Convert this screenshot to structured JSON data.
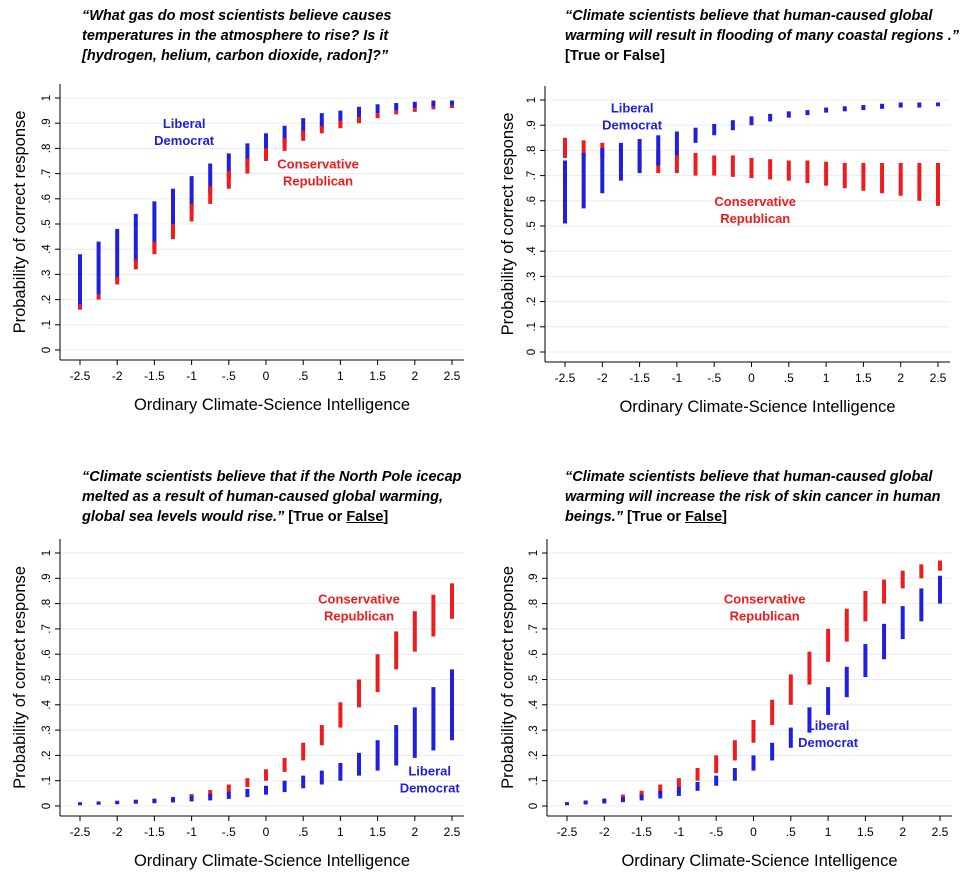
{
  "colors": {
    "liberal": "#1f1fe0",
    "conservative": "#ee1c1c",
    "grid": "#e8ecf0",
    "axis": "#000000"
  },
  "chart_data": [
    {
      "type": "range-bar",
      "question": "“What gas do most scientists believe causes temperatures in the atmosphere to rise? Is it [hydrogen, helium, carbon dioxide, radon]?”",
      "answer_hint": "",
      "answer_under": "",
      "answer_tail": "",
      "xlabel": "Ordinary Climate-Science Intelligence",
      "ylabel": "Probability of correct response",
      "ylim": [
        0,
        1
      ],
      "xlim": [
        -2.5,
        2.5
      ],
      "x_ticks": [
        "-2.5",
        "-2",
        "-1.5",
        "-1",
        "-.5",
        "0",
        ".5",
        "1",
        "1.5",
        "2",
        "2.5"
      ],
      "y_ticks": [
        "0",
        ".1",
        ".2",
        ".3",
        ".4",
        ".5",
        ".6",
        ".7",
        ".8",
        ".9",
        "1"
      ],
      "x": [
        -2.5,
        -2.25,
        -2.0,
        -1.75,
        -1.5,
        -1.25,
        -1.0,
        -0.75,
        -0.5,
        -0.25,
        0.0,
        0.25,
        0.5,
        0.75,
        1.0,
        1.25,
        1.5,
        1.75,
        2.0,
        2.25,
        2.5
      ],
      "series": [
        {
          "name": "Liberal Democrat",
          "color": "liberal",
          "low": [
            0.18,
            0.22,
            0.28,
            0.35,
            0.4,
            0.47,
            0.55,
            0.62,
            0.68,
            0.73,
            0.78,
            0.82,
            0.85,
            0.88,
            0.9,
            0.92,
            0.94,
            0.95,
            0.96,
            0.965,
            0.97
          ],
          "high": [
            0.38,
            0.43,
            0.48,
            0.54,
            0.59,
            0.64,
            0.69,
            0.74,
            0.78,
            0.82,
            0.86,
            0.89,
            0.92,
            0.94,
            0.95,
            0.965,
            0.975,
            0.98,
            0.985,
            0.99,
            0.99
          ]
        },
        {
          "name": "Conservative Republican",
          "color": "conservative",
          "low": [
            0.16,
            0.2,
            0.26,
            0.32,
            0.38,
            0.44,
            0.51,
            0.58,
            0.64,
            0.7,
            0.75,
            0.79,
            0.83,
            0.86,
            0.88,
            0.9,
            0.92,
            0.935,
            0.945,
            0.955,
            0.96
          ],
          "high": [
            0.18,
            0.22,
            0.29,
            0.36,
            0.43,
            0.5,
            0.58,
            0.65,
            0.71,
            0.76,
            0.8,
            0.84,
            0.87,
            0.89,
            0.91,
            0.925,
            0.94,
            0.95,
            0.96,
            0.965,
            0.97
          ]
        }
      ],
      "labels": [
        {
          "text": [
            "Liberal",
            "Democrat"
          ],
          "x": -1.1,
          "y": 0.88,
          "color": "liberal"
        },
        {
          "text": [
            "Conservative",
            "Republican"
          ],
          "x": 0.7,
          "y": 0.72,
          "color": "conservative"
        }
      ]
    },
    {
      "type": "range-bar",
      "question": "“Climate scientists believe that human-caused global warming will result in flooding of many coastal regions .”",
      "answer_hint": " [True or False]",
      "answer_under": "",
      "answer_tail": "",
      "xlabel": "Ordinary Climate-Science Intelligence",
      "ylabel": "Probability of correct response",
      "ylim": [
        0,
        1
      ],
      "xlim": [
        -2.5,
        2.5
      ],
      "x_ticks": [
        "-2.5",
        "-2",
        "-1.5",
        "-1",
        "-.5",
        "0",
        ".5",
        "1",
        "1.5",
        "2",
        "2.5"
      ],
      "y_ticks": [
        "0",
        ".1",
        ".2",
        ".3",
        ".4",
        ".5",
        ".6",
        ".7",
        ".8",
        ".9",
        "1"
      ],
      "x": [
        -2.5,
        -2.25,
        -2.0,
        -1.75,
        -1.5,
        -1.25,
        -1.0,
        -0.75,
        -0.5,
        -0.25,
        0.0,
        0.25,
        0.5,
        0.75,
        1.0,
        1.25,
        1.5,
        1.75,
        2.0,
        2.25,
        2.5
      ],
      "series": [
        {
          "name": "Conservative Republican",
          "color": "conservative",
          "low": [
            0.77,
            0.77,
            0.77,
            0.73,
            0.72,
            0.71,
            0.71,
            0.7,
            0.7,
            0.695,
            0.69,
            0.685,
            0.68,
            0.67,
            0.66,
            0.65,
            0.64,
            0.63,
            0.62,
            0.6,
            0.58
          ],
          "high": [
            0.85,
            0.84,
            0.83,
            0.82,
            0.81,
            0.8,
            0.8,
            0.79,
            0.78,
            0.78,
            0.77,
            0.765,
            0.76,
            0.76,
            0.755,
            0.75,
            0.75,
            0.75,
            0.75,
            0.75,
            0.75
          ]
        },
        {
          "name": "Liberal Democrat",
          "color": "liberal",
          "low": [
            0.51,
            0.57,
            0.63,
            0.68,
            0.71,
            0.74,
            0.78,
            0.83,
            0.86,
            0.88,
            0.9,
            0.915,
            0.93,
            0.94,
            0.95,
            0.955,
            0.96,
            0.965,
            0.97,
            0.97,
            0.975
          ],
          "high": [
            0.76,
            0.79,
            0.81,
            0.83,
            0.845,
            0.86,
            0.875,
            0.89,
            0.905,
            0.92,
            0.935,
            0.945,
            0.955,
            0.96,
            0.97,
            0.975,
            0.98,
            0.985,
            0.99,
            0.99,
            0.99
          ]
        }
      ],
      "labels": [
        {
          "text": [
            "Liberal",
            "Democrat"
          ],
          "x": -1.6,
          "y": 0.95,
          "color": "liberal"
        },
        {
          "text": [
            "Conservative",
            "Republican"
          ],
          "x": 0.05,
          "y": 0.58,
          "color": "conservative"
        }
      ]
    },
    {
      "type": "range-bar",
      "question": "“Climate scientists believe that if the North Pole icecap melted as a result of human-caused global warming, global sea levels would rise.”",
      "answer_hint": " [True or ",
      "answer_under": "False",
      "answer_tail": "]",
      "xlabel": "Ordinary Climate-Science Intelligence",
      "ylabel": "Probability of correct response",
      "ylim": [
        0,
        1
      ],
      "xlim": [
        -2.5,
        2.5
      ],
      "x_ticks": [
        "-2.5",
        "-2",
        "-1.5",
        "-1",
        "-.5",
        "0",
        ".5",
        "1",
        "1.5",
        "2",
        "2.5"
      ],
      "y_ticks": [
        "0",
        ".1",
        ".2",
        ".3",
        ".4",
        ".5",
        ".6",
        ".7",
        ".8",
        ".9",
        "1"
      ],
      "x": [
        -2.5,
        -2.25,
        -2.0,
        -1.75,
        -1.5,
        -1.25,
        -1.0,
        -0.75,
        -0.5,
        -0.25,
        0.0,
        0.25,
        0.5,
        0.75,
        1.0,
        1.25,
        1.5,
        1.75,
        2.0,
        2.25,
        2.5
      ],
      "series": [
        {
          "name": "Conservative Republican",
          "color": "conservative",
          "low": [
            0.005,
            0.008,
            0.01,
            0.013,
            0.017,
            0.022,
            0.03,
            0.04,
            0.055,
            0.075,
            0.1,
            0.135,
            0.18,
            0.24,
            0.31,
            0.39,
            0.45,
            0.54,
            0.61,
            0.67,
            0.74
          ],
          "high": [
            0.01,
            0.013,
            0.017,
            0.022,
            0.028,
            0.036,
            0.047,
            0.063,
            0.085,
            0.11,
            0.145,
            0.19,
            0.25,
            0.32,
            0.41,
            0.5,
            0.6,
            0.69,
            0.77,
            0.835,
            0.88
          ]
        },
        {
          "name": "Liberal Democrat",
          "color": "liberal",
          "low": [
            0.003,
            0.005,
            0.007,
            0.009,
            0.011,
            0.014,
            0.018,
            0.022,
            0.028,
            0.035,
            0.045,
            0.055,
            0.07,
            0.085,
            0.1,
            0.12,
            0.14,
            0.16,
            0.19,
            0.22,
            0.26
          ],
          "high": [
            0.015,
            0.018,
            0.021,
            0.025,
            0.029,
            0.034,
            0.04,
            0.048,
            0.057,
            0.068,
            0.08,
            0.1,
            0.12,
            0.14,
            0.17,
            0.21,
            0.26,
            0.32,
            0.39,
            0.47,
            0.54
          ]
        }
      ],
      "labels": [
        {
          "text": [
            "Conservative",
            "Republican"
          ],
          "x": 1.25,
          "y": 0.8,
          "color": "conservative"
        },
        {
          "text": [
            "Liberal",
            "Democrat"
          ],
          "x": 2.2,
          "y": 0.12,
          "color": "liberal"
        }
      ]
    },
    {
      "type": "range-bar",
      "question": "“Climate scientists believe that human-caused global warming will increase the risk of skin cancer in human beings.”",
      "answer_hint": " [True or ",
      "answer_under": "False",
      "answer_tail": "]",
      "xlabel": "Ordinary Climate-Science Intelligence",
      "ylabel": "Probability of correct response",
      "ylim": [
        0,
        1
      ],
      "xlim": [
        -2.5,
        2.5
      ],
      "x_ticks": [
        "-2.5",
        "-2",
        "-1.5",
        "-1",
        "-.5",
        "0",
        ".5",
        "1",
        "1.5",
        "2",
        "2.5"
      ],
      "y_ticks": [
        "0",
        ".1",
        ".2",
        ".3",
        ".4",
        ".5",
        ".6",
        ".7",
        ".8",
        ".9",
        "1"
      ],
      "x": [
        -2.5,
        -2.25,
        -2.0,
        -1.75,
        -1.5,
        -1.25,
        -1.0,
        -0.75,
        -0.5,
        -0.25,
        0.0,
        0.25,
        0.5,
        0.75,
        1.0,
        1.25,
        1.5,
        1.75,
        2.0,
        2.25,
        2.5
      ],
      "series": [
        {
          "name": "Conservative Republican",
          "color": "conservative",
          "low": [
            0.005,
            0.01,
            0.015,
            0.025,
            0.035,
            0.05,
            0.07,
            0.1,
            0.13,
            0.18,
            0.25,
            0.32,
            0.4,
            0.48,
            0.57,
            0.65,
            0.73,
            0.8,
            0.86,
            0.9,
            0.93
          ],
          "high": [
            0.015,
            0.022,
            0.03,
            0.045,
            0.06,
            0.085,
            0.11,
            0.15,
            0.2,
            0.26,
            0.34,
            0.42,
            0.52,
            0.61,
            0.7,
            0.78,
            0.85,
            0.895,
            0.93,
            0.955,
            0.97
          ]
        },
        {
          "name": "Liberal Democrat",
          "color": "liberal",
          "low": [
            0.003,
            0.006,
            0.01,
            0.015,
            0.022,
            0.03,
            0.04,
            0.06,
            0.08,
            0.1,
            0.14,
            0.18,
            0.23,
            0.29,
            0.36,
            0.43,
            0.51,
            0.58,
            0.66,
            0.73,
            0.8
          ],
          "high": [
            0.015,
            0.02,
            0.028,
            0.035,
            0.045,
            0.06,
            0.075,
            0.095,
            0.12,
            0.15,
            0.2,
            0.25,
            0.31,
            0.39,
            0.47,
            0.55,
            0.64,
            0.72,
            0.79,
            0.86,
            0.91
          ]
        }
      ],
      "labels": [
        {
          "text": [
            "Conservative",
            "Republican"
          ],
          "x": 0.15,
          "y": 0.8,
          "color": "conservative"
        },
        {
          "text": [
            "Liberal",
            "Democrat"
          ],
          "x": 1.0,
          "y": 0.3,
          "color": "liberal"
        }
      ]
    }
  ]
}
